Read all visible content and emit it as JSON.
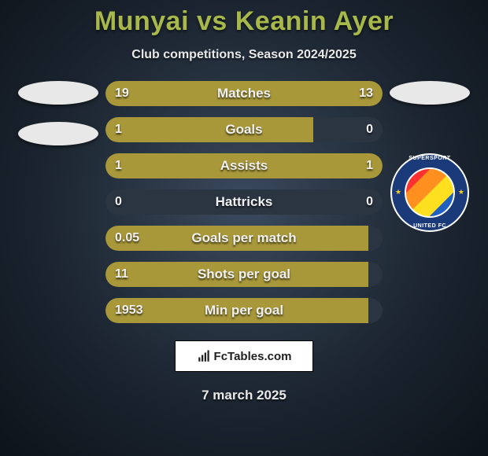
{
  "title": "Munyai vs Keanin Ayer",
  "subtitle": "Club competitions, Season 2024/2025",
  "footer": {
    "brand": "FcTables.com",
    "date": "7 march 2025"
  },
  "colors": {
    "left_bar": "#a8983a",
    "right_bar": "#a8983a",
    "track": "#2b3542",
    "title": "#a8b84a",
    "background_center": "#3a4a5e",
    "background_edge": "#0d131a"
  },
  "badge": {
    "top_text": "SUPERSPORT",
    "bottom_text": "UNITED FC",
    "ring_color": "#1a3a7a"
  },
  "bar_style": {
    "height": 32,
    "radius": 16,
    "gap": 14,
    "label_fontsize": 17,
    "value_fontsize": 16
  },
  "stats": [
    {
      "label": "Matches",
      "left_text": "19",
      "right_text": "13",
      "left_pct": 59,
      "right_pct": 41
    },
    {
      "label": "Goals",
      "left_text": "1",
      "right_text": "0",
      "left_pct": 75,
      "right_pct": 0
    },
    {
      "label": "Assists",
      "left_text": "1",
      "right_text": "1",
      "left_pct": 50,
      "right_pct": 50
    },
    {
      "label": "Hattricks",
      "left_text": "0",
      "right_text": "0",
      "left_pct": 0,
      "right_pct": 0
    },
    {
      "label": "Goals per match",
      "left_text": "0.05",
      "right_text": "",
      "left_pct": 95,
      "right_pct": 0
    },
    {
      "label": "Shots per goal",
      "left_text": "11",
      "right_text": "",
      "left_pct": 95,
      "right_pct": 0
    },
    {
      "label": "Min per goal",
      "left_text": "1953",
      "right_text": "",
      "left_pct": 95,
      "right_pct": 0
    }
  ]
}
